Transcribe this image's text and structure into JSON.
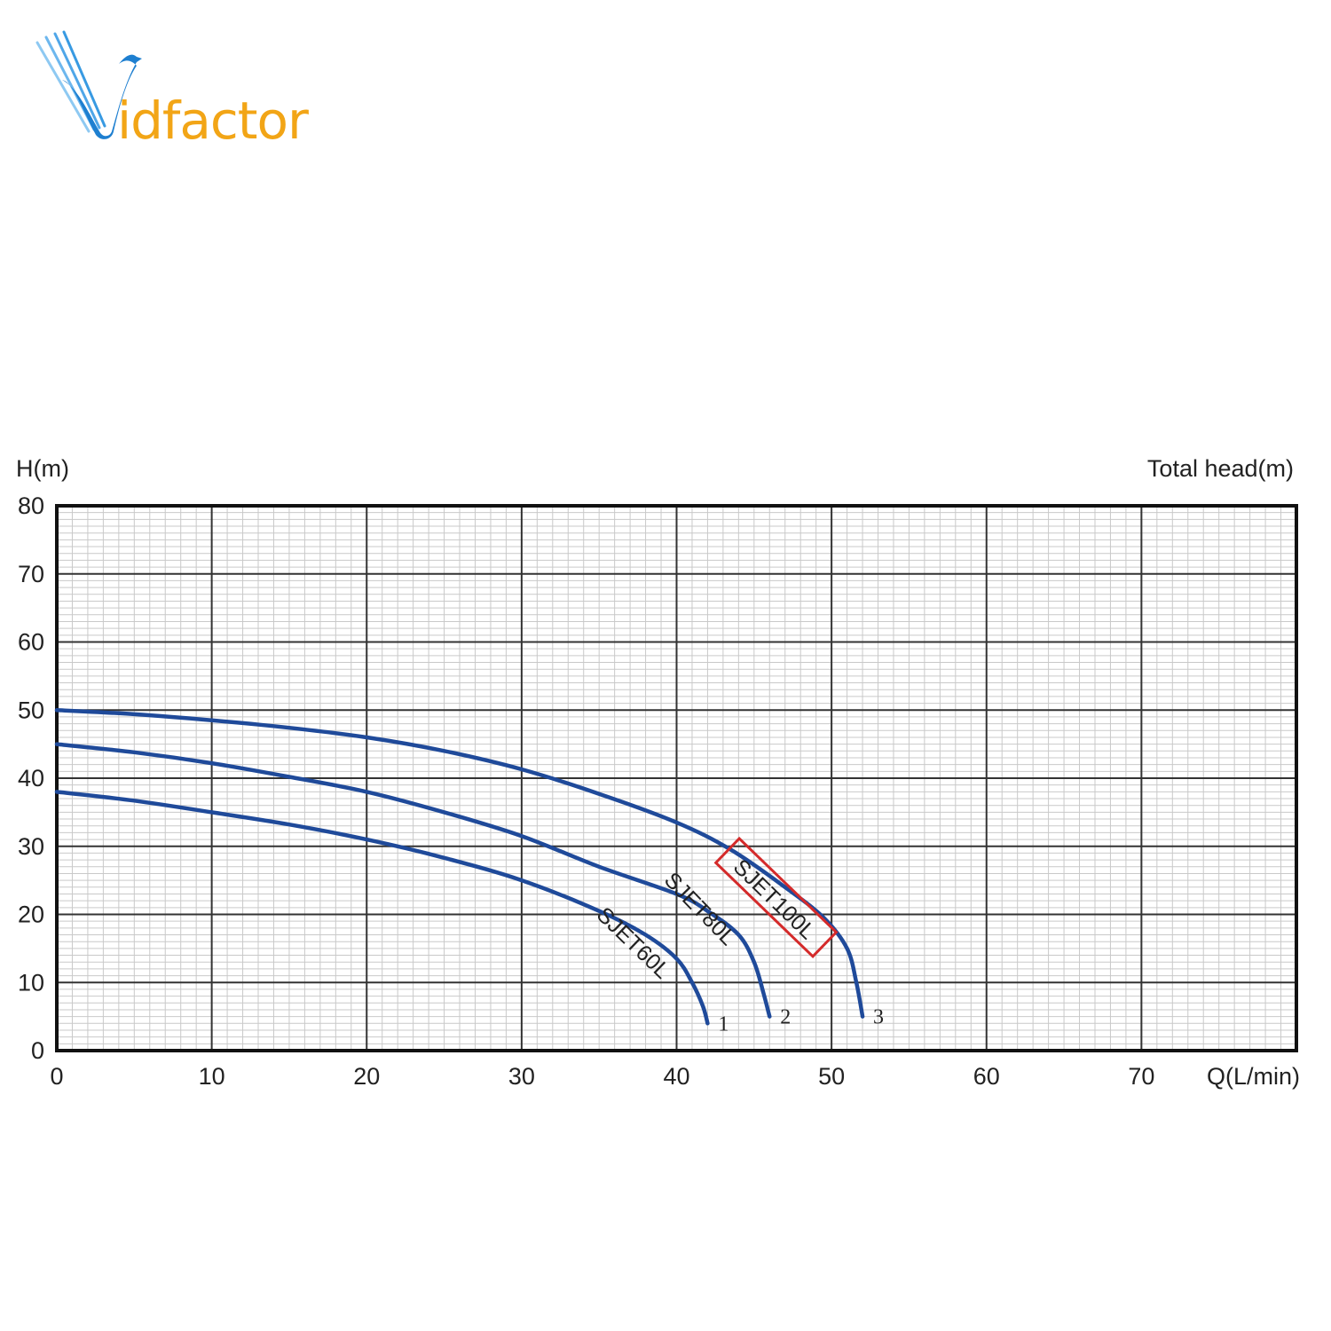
{
  "logo": {
    "text_prefix": "V",
    "text_main": "idfactor",
    "color_primary": "#1e7fd0",
    "color_secondary": "#f2a516"
  },
  "chart_data": {
    "type": "line",
    "ylabel": "H(m)",
    "y2label": "Total head(m)",
    "xlabel": "Q(L/min)",
    "xlim": [
      0,
      80
    ],
    "ylim": [
      0,
      80
    ],
    "x_ticks": [
      "0",
      "10",
      "20",
      "30",
      "40",
      "50",
      "60",
      "70"
    ],
    "y_ticks": [
      "0",
      "10",
      "20",
      "30",
      "40",
      "50",
      "60",
      "70",
      "80"
    ],
    "grid": true,
    "line_color": "#1f4a9a",
    "highlight_color": "#d42a2a",
    "series": [
      {
        "name": "SJET60L",
        "end_label": "1",
        "highlighted": false,
        "points": [
          [
            0,
            38
          ],
          [
            5,
            36.7
          ],
          [
            10,
            35
          ],
          [
            15,
            33.2
          ],
          [
            20,
            31
          ],
          [
            25,
            28.3
          ],
          [
            30,
            25
          ],
          [
            35,
            20.5
          ],
          [
            38,
            17
          ],
          [
            40,
            13.5
          ],
          [
            41,
            10
          ],
          [
            41.7,
            6.5
          ],
          [
            42,
            4
          ]
        ]
      },
      {
        "name": "SJET80L",
        "end_label": "2",
        "highlighted": false,
        "points": [
          [
            0,
            45
          ],
          [
            5,
            43.8
          ],
          [
            10,
            42.2
          ],
          [
            15,
            40.2
          ],
          [
            20,
            38
          ],
          [
            25,
            35
          ],
          [
            30,
            31.5
          ],
          [
            35,
            27
          ],
          [
            40,
            23
          ],
          [
            42,
            20.5
          ],
          [
            44,
            17
          ],
          [
            45,
            13
          ],
          [
            45.6,
            8.5
          ],
          [
            46,
            5
          ]
        ]
      },
      {
        "name": "SJET100L",
        "end_label": "3",
        "highlighted": true,
        "points": [
          [
            0,
            50
          ],
          [
            5,
            49.4
          ],
          [
            10,
            48.5
          ],
          [
            15,
            47.4
          ],
          [
            20,
            46
          ],
          [
            25,
            44
          ],
          [
            30,
            41.3
          ],
          [
            35,
            37.7
          ],
          [
            40,
            33.5
          ],
          [
            43.5,
            29.5
          ],
          [
            47,
            24
          ],
          [
            49.5,
            19.5
          ],
          [
            51,
            15
          ],
          [
            51.6,
            10
          ],
          [
            52,
            5
          ]
        ]
      }
    ]
  }
}
